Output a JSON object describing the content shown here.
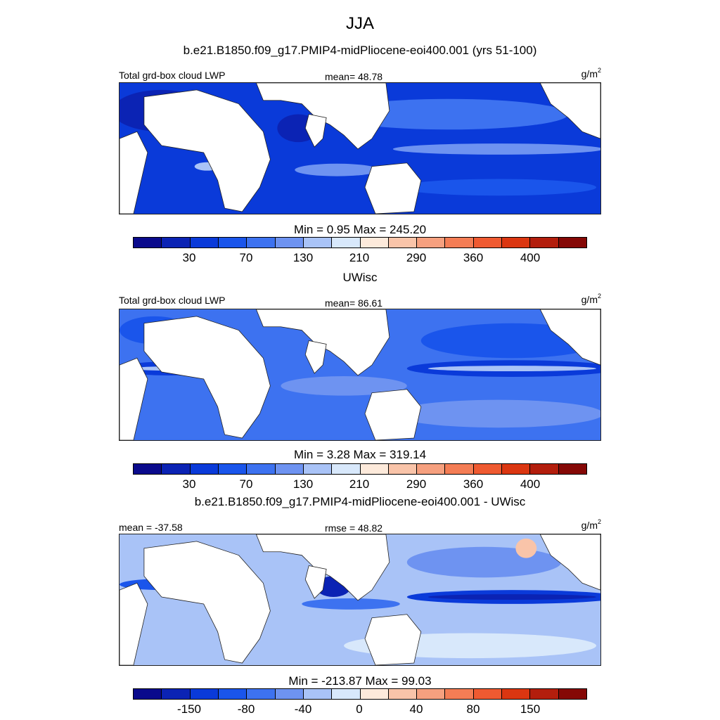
{
  "figure": {
    "title": "JJA",
    "units_base": "g/m",
    "units_exp": "2"
  },
  "colorbar_colors": [
    "#0a0a8c",
    "#0b23b4",
    "#0a3ad9",
    "#1a55eb",
    "#3d72f0",
    "#6e93f1",
    "#a9c3f7",
    "#d8e8fb",
    "#fdeadb",
    "#f9c4a9",
    "#f6a07f",
    "#f47d55",
    "#ef5a31",
    "#db3611",
    "#b31e0d",
    "#850806"
  ],
  "panels": [
    {
      "subtitle": "b.e21.B1850.f09_g17.PMIP4-midPliocene-eoi400.001 (yrs 51-100)",
      "left_label": "Total grd-box cloud LWP",
      "center_label": "mean=  48.78",
      "minmax": "Min =   0.95 Max = 245.20",
      "ticks": [
        "30",
        "70",
        "130",
        "210",
        "290",
        "360",
        "400"
      ],
      "ocean_color": "#0a3ad9"
    },
    {
      "subtitle": "UWisc",
      "left_label": "Total grd-box cloud LWP",
      "center_label": "mean=  86.61",
      "minmax": "Min =   3.28 Max = 319.14",
      "ticks": [
        "30",
        "70",
        "130",
        "210",
        "290",
        "360",
        "400"
      ],
      "ocean_color": "#3d72f0"
    },
    {
      "subtitle": "b.e21.B1850.f09_g17.PMIP4-midPliocene-eoi400.001 - UWisc",
      "left_label": "mean = -37.58",
      "center_label": "rmse =  48.82",
      "minmax": "Min = -213.87 Max =  99.03",
      "ticks": [
        "-150",
        "-80",
        "-40",
        "0",
        "40",
        "80",
        "150"
      ],
      "ocean_color": "#a9c3f7"
    }
  ]
}
